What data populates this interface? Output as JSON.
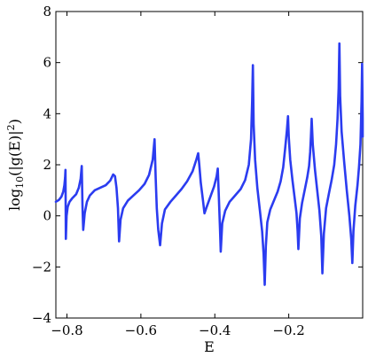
{
  "chart_data": {
    "type": "line",
    "title": "",
    "xlabel": "E",
    "ylabel": {
      "prefix": "log",
      "sub": "10",
      "mid": "(|g(E)|",
      "sup": "2",
      "suffix": ")"
    },
    "xlim": [
      -0.83,
      0.0
    ],
    "ylim": [
      -4,
      8
    ],
    "xticks": [
      -0.8,
      -0.6,
      -0.4,
      -0.2
    ],
    "xtick_labels": [
      "−0.8",
      "−0.6",
      "−0.4",
      "−0.2"
    ],
    "yticks": [
      -4,
      -2,
      0,
      2,
      4,
      6,
      8
    ],
    "ytick_labels": [
      "−4",
      "−2",
      "0",
      "2",
      "4",
      "6",
      "8"
    ],
    "grid": false,
    "legend": "none",
    "series": [
      {
        "color": "#2b3cf0",
        "points": [
          [
            -0.83,
            0.55
          ],
          [
            -0.822,
            0.62
          ],
          [
            -0.815,
            0.75
          ],
          [
            -0.81,
            0.95
          ],
          [
            -0.807,
            1.2
          ],
          [
            -0.805,
            1.5
          ],
          [
            -0.804,
            1.8
          ],
          [
            -0.8035,
            0.5
          ],
          [
            -0.803,
            -0.9
          ],
          [
            -0.801,
            0.0
          ],
          [
            -0.798,
            0.35
          ],
          [
            -0.793,
            0.55
          ],
          [
            -0.785,
            0.7
          ],
          [
            -0.775,
            0.85
          ],
          [
            -0.768,
            1.1
          ],
          [
            -0.763,
            1.45
          ],
          [
            -0.76,
            1.95
          ],
          [
            -0.758,
            0.4
          ],
          [
            -0.756,
            -0.55
          ],
          [
            -0.752,
            0.1
          ],
          [
            -0.746,
            0.55
          ],
          [
            -0.738,
            0.8
          ],
          [
            -0.725,
            1.0
          ],
          [
            -0.71,
            1.1
          ],
          [
            -0.695,
            1.2
          ],
          [
            -0.683,
            1.38
          ],
          [
            -0.675,
            1.62
          ],
          [
            -0.67,
            1.55
          ],
          [
            -0.666,
            1.1
          ],
          [
            -0.662,
            0.3
          ],
          [
            -0.659,
            -1.0
          ],
          [
            -0.655,
            -0.15
          ],
          [
            -0.648,
            0.3
          ],
          [
            -0.635,
            0.6
          ],
          [
            -0.62,
            0.8
          ],
          [
            -0.605,
            1.0
          ],
          [
            -0.59,
            1.25
          ],
          [
            -0.578,
            1.6
          ],
          [
            -0.568,
            2.2
          ],
          [
            -0.563,
            3.0
          ],
          [
            -0.56,
            1.5
          ],
          [
            -0.557,
            0.3
          ],
          [
            -0.553,
            -0.55
          ],
          [
            -0.548,
            -1.15
          ],
          [
            -0.543,
            -0.3
          ],
          [
            -0.535,
            0.25
          ],
          [
            -0.52,
            0.55
          ],
          [
            -0.505,
            0.8
          ],
          [
            -0.49,
            1.05
          ],
          [
            -0.475,
            1.35
          ],
          [
            -0.46,
            1.75
          ],
          [
            -0.45,
            2.2
          ],
          [
            -0.445,
            2.45
          ],
          [
            -0.442,
            2.0
          ],
          [
            -0.438,
            1.3
          ],
          [
            -0.432,
            0.6
          ],
          [
            -0.428,
            0.1
          ],
          [
            -0.422,
            0.35
          ],
          [
            -0.412,
            0.75
          ],
          [
            -0.402,
            1.15
          ],
          [
            -0.395,
            1.55
          ],
          [
            -0.392,
            1.85
          ],
          [
            -0.389,
            0.7
          ],
          [
            -0.386,
            -0.5
          ],
          [
            -0.384,
            -1.4
          ],
          [
            -0.38,
            -0.3
          ],
          [
            -0.372,
            0.2
          ],
          [
            -0.36,
            0.55
          ],
          [
            -0.345,
            0.8
          ],
          [
            -0.33,
            1.05
          ],
          [
            -0.318,
            1.4
          ],
          [
            -0.308,
            2.0
          ],
          [
            -0.302,
            3.0
          ],
          [
            -0.299,
            4.5
          ],
          [
            -0.297,
            5.9
          ],
          [
            -0.295,
            3.6
          ],
          [
            -0.291,
            2.2
          ],
          [
            -0.285,
            1.1
          ],
          [
            -0.278,
            0.2
          ],
          [
            -0.272,
            -0.6
          ],
          [
            -0.268,
            -1.5
          ],
          [
            -0.265,
            -2.7
          ],
          [
            -0.262,
            -1.2
          ],
          [
            -0.258,
            -0.25
          ],
          [
            -0.25,
            0.25
          ],
          [
            -0.24,
            0.6
          ],
          [
            -0.23,
            0.95
          ],
          [
            -0.222,
            1.35
          ],
          [
            -0.215,
            1.9
          ],
          [
            -0.21,
            2.6
          ],
          [
            -0.205,
            3.35
          ],
          [
            -0.202,
            3.9
          ],
          [
            -0.2,
            3.1
          ],
          [
            -0.196,
            2.2
          ],
          [
            -0.19,
            1.4
          ],
          [
            -0.184,
            0.7
          ],
          [
            -0.179,
            0.1
          ],
          [
            -0.176,
            -0.6
          ],
          [
            -0.174,
            -1.3
          ],
          [
            -0.17,
            -0.1
          ],
          [
            -0.164,
            0.5
          ],
          [
            -0.157,
            1.0
          ],
          [
            -0.15,
            1.5
          ],
          [
            -0.145,
            1.95
          ],
          [
            -0.142,
            2.5
          ],
          [
            -0.14,
            3.1
          ],
          [
            -0.138,
            3.8
          ],
          [
            -0.135,
            2.8
          ],
          [
            -0.129,
            1.8
          ],
          [
            -0.123,
            1.0
          ],
          [
            -0.117,
            0.2
          ],
          [
            -0.112,
            -0.8
          ],
          [
            -0.109,
            -2.25
          ],
          [
            -0.105,
            -0.7
          ],
          [
            -0.099,
            0.3
          ],
          [
            -0.091,
            0.9
          ],
          [
            -0.084,
            1.4
          ],
          [
            -0.077,
            2.0
          ],
          [
            -0.072,
            2.8
          ],
          [
            -0.068,
            3.8
          ],
          [
            -0.065,
            5.0
          ],
          [
            -0.063,
            6.75
          ],
          [
            -0.061,
            4.7
          ],
          [
            -0.057,
            3.3
          ],
          [
            -0.05,
            2.1
          ],
          [
            -0.043,
            1.0
          ],
          [
            -0.036,
            0.0
          ],
          [
            -0.031,
            -0.9
          ],
          [
            -0.028,
            -1.85
          ],
          [
            -0.025,
            -0.6
          ],
          [
            -0.02,
            0.4
          ],
          [
            -0.014,
            1.2
          ],
          [
            -0.01,
            1.9
          ],
          [
            -0.006,
            2.8
          ],
          [
            -0.003,
            4.5
          ],
          [
            -0.0015,
            5.95
          ],
          [
            0.0,
            3.8
          ],
          [
            0.0,
            3.1
          ]
        ]
      }
    ]
  }
}
